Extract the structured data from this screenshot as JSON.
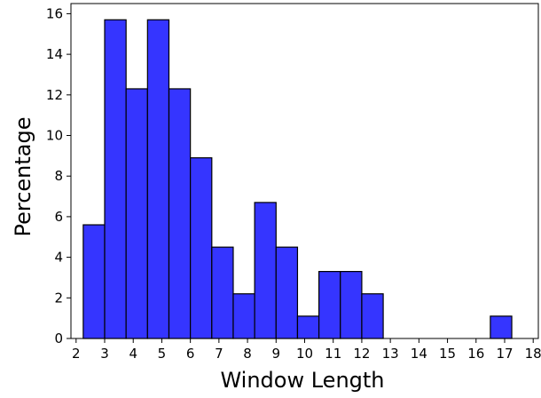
{
  "chart_data": {
    "type": "bar",
    "title": "",
    "xlabel": "Window Length",
    "ylabel": "Percentage",
    "xlim": [
      1.82,
      18.18
    ],
    "ylim": [
      0,
      16.5
    ],
    "xticks": [
      2,
      3,
      4,
      5,
      6,
      7,
      8,
      9,
      10,
      11,
      12,
      13,
      14,
      15,
      16,
      17,
      18
    ],
    "yticks": [
      0,
      2,
      4,
      6,
      8,
      10,
      12,
      14,
      16
    ],
    "bin_width": 0.75,
    "bars": [
      {
        "x0": 2.25,
        "value": 5.6
      },
      {
        "x0": 3.0,
        "value": 15.7
      },
      {
        "x0": 3.75,
        "value": 12.3
      },
      {
        "x0": 4.5,
        "value": 15.7
      },
      {
        "x0": 5.25,
        "value": 12.3
      },
      {
        "x0": 6.0,
        "value": 8.9
      },
      {
        "x0": 6.75,
        "value": 4.5
      },
      {
        "x0": 7.5,
        "value": 2.2
      },
      {
        "x0": 8.25,
        "value": 6.7
      },
      {
        "x0": 9.0,
        "value": 4.5
      },
      {
        "x0": 9.75,
        "value": 1.1
      },
      {
        "x0": 10.5,
        "value": 3.3
      },
      {
        "x0": 11.25,
        "value": 3.3
      },
      {
        "x0": 12.0,
        "value": 2.2
      },
      {
        "x0": 16.5,
        "value": 1.1
      }
    ],
    "grid": false,
    "bar_color": "#3535ff",
    "edge_color": "#000000"
  }
}
